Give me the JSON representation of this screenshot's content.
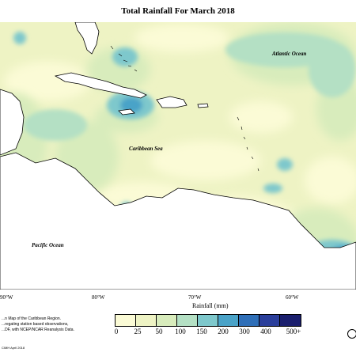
{
  "title": "Total Rainfall For March 2018",
  "labels": {
    "atlantic": "Atlantic Ocean",
    "caribbean": "Caribbean Sea",
    "pacific": "Pacific Ocean"
  },
  "longitudes": [
    "90°W",
    "80°W",
    "70°W",
    "60°W"
  ],
  "legend": {
    "title": "Rainfall (mm)",
    "ticks": [
      "0",
      "25",
      "50",
      "100",
      "150",
      "200",
      "300",
      "400",
      "500+"
    ],
    "colors": [
      "#fbfbd6",
      "#eef3c4",
      "#d8ecbc",
      "#b4e0c4",
      "#7ec8cc",
      "#4aa3c8",
      "#2f6fb8",
      "#2b3f9b",
      "#1b1f6e"
    ]
  },
  "caption": [
    "...n Map of the Caribbean Region.",
    "...regating station based observations,",
    "...DF, with NCEP/NCAR Reanalysis Data."
  ],
  "credit": "CIMH April 2018",
  "info_icon": "info-icon"
}
